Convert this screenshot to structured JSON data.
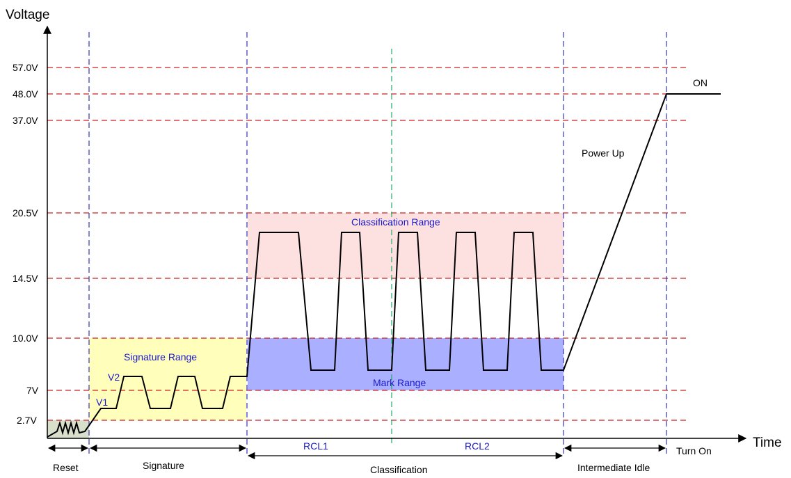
{
  "axis": {
    "y_title": "Voltage",
    "x_title": "Time"
  },
  "voltage_levels": [
    {
      "label": "57.0V",
      "value": 57.0
    },
    {
      "label": "48.0V",
      "value": 48.0
    },
    {
      "label": "37.0V",
      "value": 37.0
    },
    {
      "label": "20.5V",
      "value": 20.5
    },
    {
      "label": "14.5V",
      "value": 14.5
    },
    {
      "label": "10.0V",
      "value": 10.0
    },
    {
      "label": "7V",
      "value": 7.0
    },
    {
      "label": "2.7V",
      "value": 2.7
    }
  ],
  "regions": {
    "signature_range": "Signature Range",
    "classification_range": "Classification Range",
    "mark_range": "Mark Range"
  },
  "waveform_labels": {
    "v1": "V1",
    "v2": "V2",
    "power_up": "Power Up",
    "on": "ON"
  },
  "phases": {
    "reset": "Reset",
    "signature": "Signature",
    "classification": "Classification",
    "rcl1": "RCL1",
    "rcl2": "RCL2",
    "intermediate_idle": "Intermediate Idle",
    "turn_on": "Turn On"
  },
  "colors": {
    "level_line": "#cc2222",
    "phase_divider": "#3333bb",
    "rcl_divider": "#22aa66",
    "signature_fill": "#ffffbb",
    "classification_fill": "#fde0e0",
    "mark_fill": "#aab0ff",
    "reset_fill": "#d8e0cc",
    "label_blue": "#1a1acc"
  }
}
